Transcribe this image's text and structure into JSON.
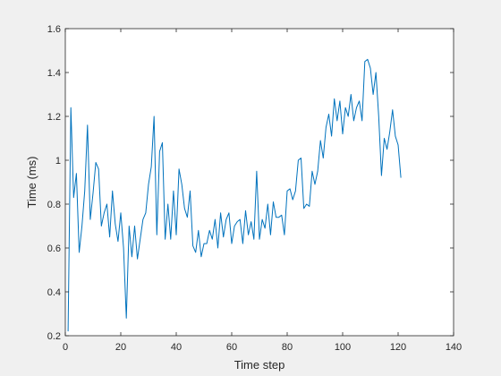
{
  "chart_data": {
    "type": "line",
    "xlabel": "Time step",
    "ylabel": "Time (ms)",
    "xlim": [
      0,
      140
    ],
    "ylim": [
      0.2,
      1.6
    ],
    "xticks": [
      0,
      20,
      40,
      60,
      80,
      100,
      120,
      140
    ],
    "yticks": [
      0.2,
      0.4,
      0.6,
      0.8,
      1,
      1.2,
      1.4,
      1.6
    ],
    "xtick_labels": [
      "0",
      "20",
      "40",
      "60",
      "80",
      "100",
      "120",
      "140"
    ],
    "ytick_labels": [
      "0.2",
      "0.4",
      "0.6",
      "0.8",
      "1",
      "1.2",
      "1.4",
      "1.6"
    ],
    "grid": false,
    "series": [
      {
        "color": "#0072bd",
        "x": [
          1,
          2,
          3,
          4,
          5,
          6,
          7,
          8,
          9,
          10,
          11,
          12,
          13,
          14,
          15,
          16,
          17,
          18,
          19,
          20,
          21,
          22,
          23,
          24,
          25,
          26,
          27,
          28,
          29,
          30,
          31,
          32,
          33,
          34,
          35,
          36,
          37,
          38,
          39,
          40,
          41,
          42,
          43,
          44,
          45,
          46,
          47,
          48,
          49,
          50,
          51,
          52,
          53,
          54,
          55,
          56,
          57,
          58,
          59,
          60,
          61,
          62,
          63,
          64,
          65,
          66,
          67,
          68,
          69,
          70,
          71,
          72,
          73,
          74,
          75,
          76,
          77,
          78,
          79,
          80,
          81,
          82,
          83,
          84,
          85,
          86,
          87,
          88,
          89,
          90,
          91,
          92,
          93,
          94,
          95,
          96,
          97,
          98,
          99,
          100,
          101,
          102,
          103,
          104,
          105,
          106,
          107,
          108,
          109,
          110,
          111,
          112,
          113,
          114,
          115,
          116,
          117,
          118,
          119,
          120,
          121
        ],
        "y": [
          0.22,
          1.24,
          0.83,
          0.94,
          0.58,
          0.7,
          0.86,
          1.16,
          0.73,
          0.85,
          0.99,
          0.96,
          0.7,
          0.76,
          0.8,
          0.65,
          0.86,
          0.71,
          0.63,
          0.76,
          0.6,
          0.28,
          0.7,
          0.56,
          0.7,
          0.55,
          0.64,
          0.73,
          0.76,
          0.89,
          0.97,
          1.2,
          0.66,
          1.04,
          1.08,
          0.64,
          0.8,
          0.64,
          0.86,
          0.66,
          0.96,
          0.89,
          0.78,
          0.74,
          0.86,
          0.61,
          0.58,
          0.68,
          0.56,
          0.62,
          0.62,
          0.68,
          0.64,
          0.73,
          0.6,
          0.76,
          0.65,
          0.73,
          0.76,
          0.62,
          0.7,
          0.72,
          0.73,
          0.62,
          0.77,
          0.66,
          0.72,
          0.64,
          0.95,
          0.64,
          0.73,
          0.69,
          0.8,
          0.66,
          0.81,
          0.74,
          0.74,
          0.75,
          0.66,
          0.86,
          0.87,
          0.82,
          0.86,
          1.0,
          1.01,
          0.78,
          0.8,
          0.79,
          0.95,
          0.89,
          0.95,
          1.09,
          1.01,
          1.15,
          1.21,
          1.11,
          1.28,
          1.18,
          1.27,
          1.12,
          1.24,
          1.2,
          1.3,
          1.18,
          1.24,
          1.27,
          1.18,
          1.45,
          1.46,
          1.42,
          1.3,
          1.4,
          1.2,
          0.93,
          1.1,
          1.05,
          1.13,
          1.23,
          1.11,
          1.07,
          0.92
        ]
      }
    ]
  }
}
